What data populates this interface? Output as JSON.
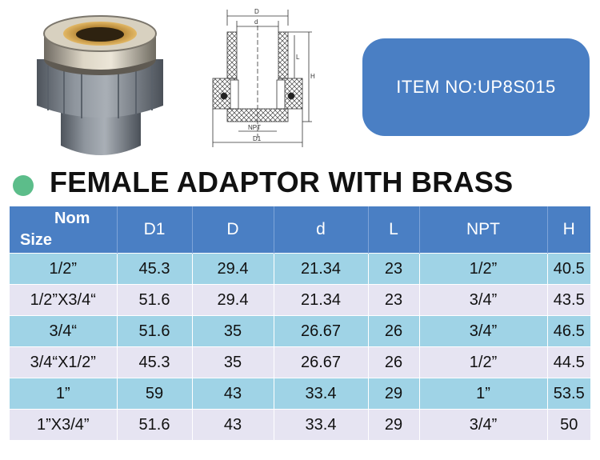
{
  "item_label": "ITEM NO:UP8S015",
  "title": "FEMALE ADAPTOR WITH BRASS",
  "drawing_labels": {
    "D": "D",
    "d": "d",
    "L": "L",
    "H": "H",
    "NPT": "NPT",
    "D1": "D1"
  },
  "table": {
    "header": {
      "nom": "Nom",
      "size": "Size",
      "cols": [
        "D1",
        "D",
        "d",
        "L",
        "NPT",
        "H"
      ]
    },
    "rows": [
      [
        "1/2”",
        "45.3",
        "29.4",
        "21.34",
        "23",
        "1/2”",
        "40.5"
      ],
      [
        "1/2”X3/4“",
        "51.6",
        "29.4",
        "21.34",
        "23",
        "3/4”",
        "43.5"
      ],
      [
        "3/4“",
        "51.6",
        "35",
        "26.67",
        "26",
        "3/4”",
        "46.5"
      ],
      [
        "3/4“X1/2”",
        "45.3",
        "35",
        "26.67",
        "26",
        "1/2”",
        "44.5"
      ],
      [
        "1”",
        "59",
        "43",
        "33.4",
        "29",
        "1”",
        "53.5"
      ],
      [
        "1”X3/4”",
        "51.6",
        "43",
        "33.4",
        "29",
        "3/4”",
        "50"
      ]
    ]
  },
  "colors": {
    "header_blue": "#4a7fc4",
    "row_light_blue": "#9fd3e6",
    "row_lavender": "#e6e4f2",
    "green_dot": "#5cbd8a"
  }
}
